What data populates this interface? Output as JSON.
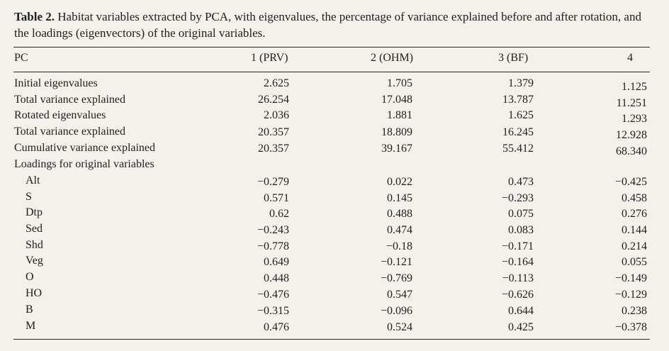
{
  "caption": {
    "label": "Table 2.",
    "text": " Habitat variables extracted by PCA, with eigenvalues, the percentage of variance explained before and after rotation, and the loadings (eigenvectors) of the original variables."
  },
  "header": [
    "PC",
    "1 (PRV)",
    "2 (OHM)",
    "3 (BF)",
    "4"
  ],
  "rows": [
    {
      "label": "Initial eigenvalues",
      "v": [
        "2.625",
        "1.705",
        "1.379",
        "1.125"
      ]
    },
    {
      "label": "Total variance explained",
      "v": [
        "26.254",
        "17.048",
        "13.787",
        "11.251"
      ]
    },
    {
      "label": "Rotated eigenvalues",
      "v": [
        "2.036",
        "1.881",
        "1.625",
        "1.293"
      ]
    },
    {
      "label": "Total variance explained",
      "v": [
        "20.357",
        "18.809",
        "16.245",
        "12.928"
      ]
    },
    {
      "label": "Cumulative variance explained",
      "v": [
        "20.357",
        "39.167",
        "55.412",
        "68.340"
      ]
    },
    {
      "label": "Loadings for original variables",
      "v": [
        "",
        "",
        "",
        ""
      ]
    },
    {
      "label": "Alt",
      "v": [
        "−0.279",
        "0.022",
        "0.473",
        "−0.425"
      ]
    },
    {
      "label": "S",
      "v": [
        "0.571",
        "0.145",
        "−0.293",
        "0.458"
      ]
    },
    {
      "label": "Dtp",
      "v": [
        "0.62",
        "0.488",
        "0.075",
        "0.276"
      ]
    },
    {
      "label": "Sed",
      "v": [
        "−0.243",
        "0.474",
        "0.083",
        "0.144"
      ]
    },
    {
      "label": "Shd",
      "v": [
        "−0.778",
        "−0.18",
        "−0.171",
        "0.214"
      ]
    },
    {
      "label": "Veg",
      "v": [
        "0.649",
        "−0.121",
        "−0.164",
        "0.055"
      ]
    },
    {
      "label": "O",
      "v": [
        "0.448",
        "−0.769",
        "−0.113",
        "−0.149"
      ]
    },
    {
      "label": "HO",
      "v": [
        "−0.476",
        "0.547",
        "−0.626",
        "−0.129"
      ]
    },
    {
      "label": "B",
      "v": [
        "−0.315",
        "−0.096",
        "0.644",
        "0.238"
      ]
    },
    {
      "label": "M",
      "v": [
        "0.476",
        "0.524",
        "0.425",
        "−0.378"
      ]
    }
  ]
}
